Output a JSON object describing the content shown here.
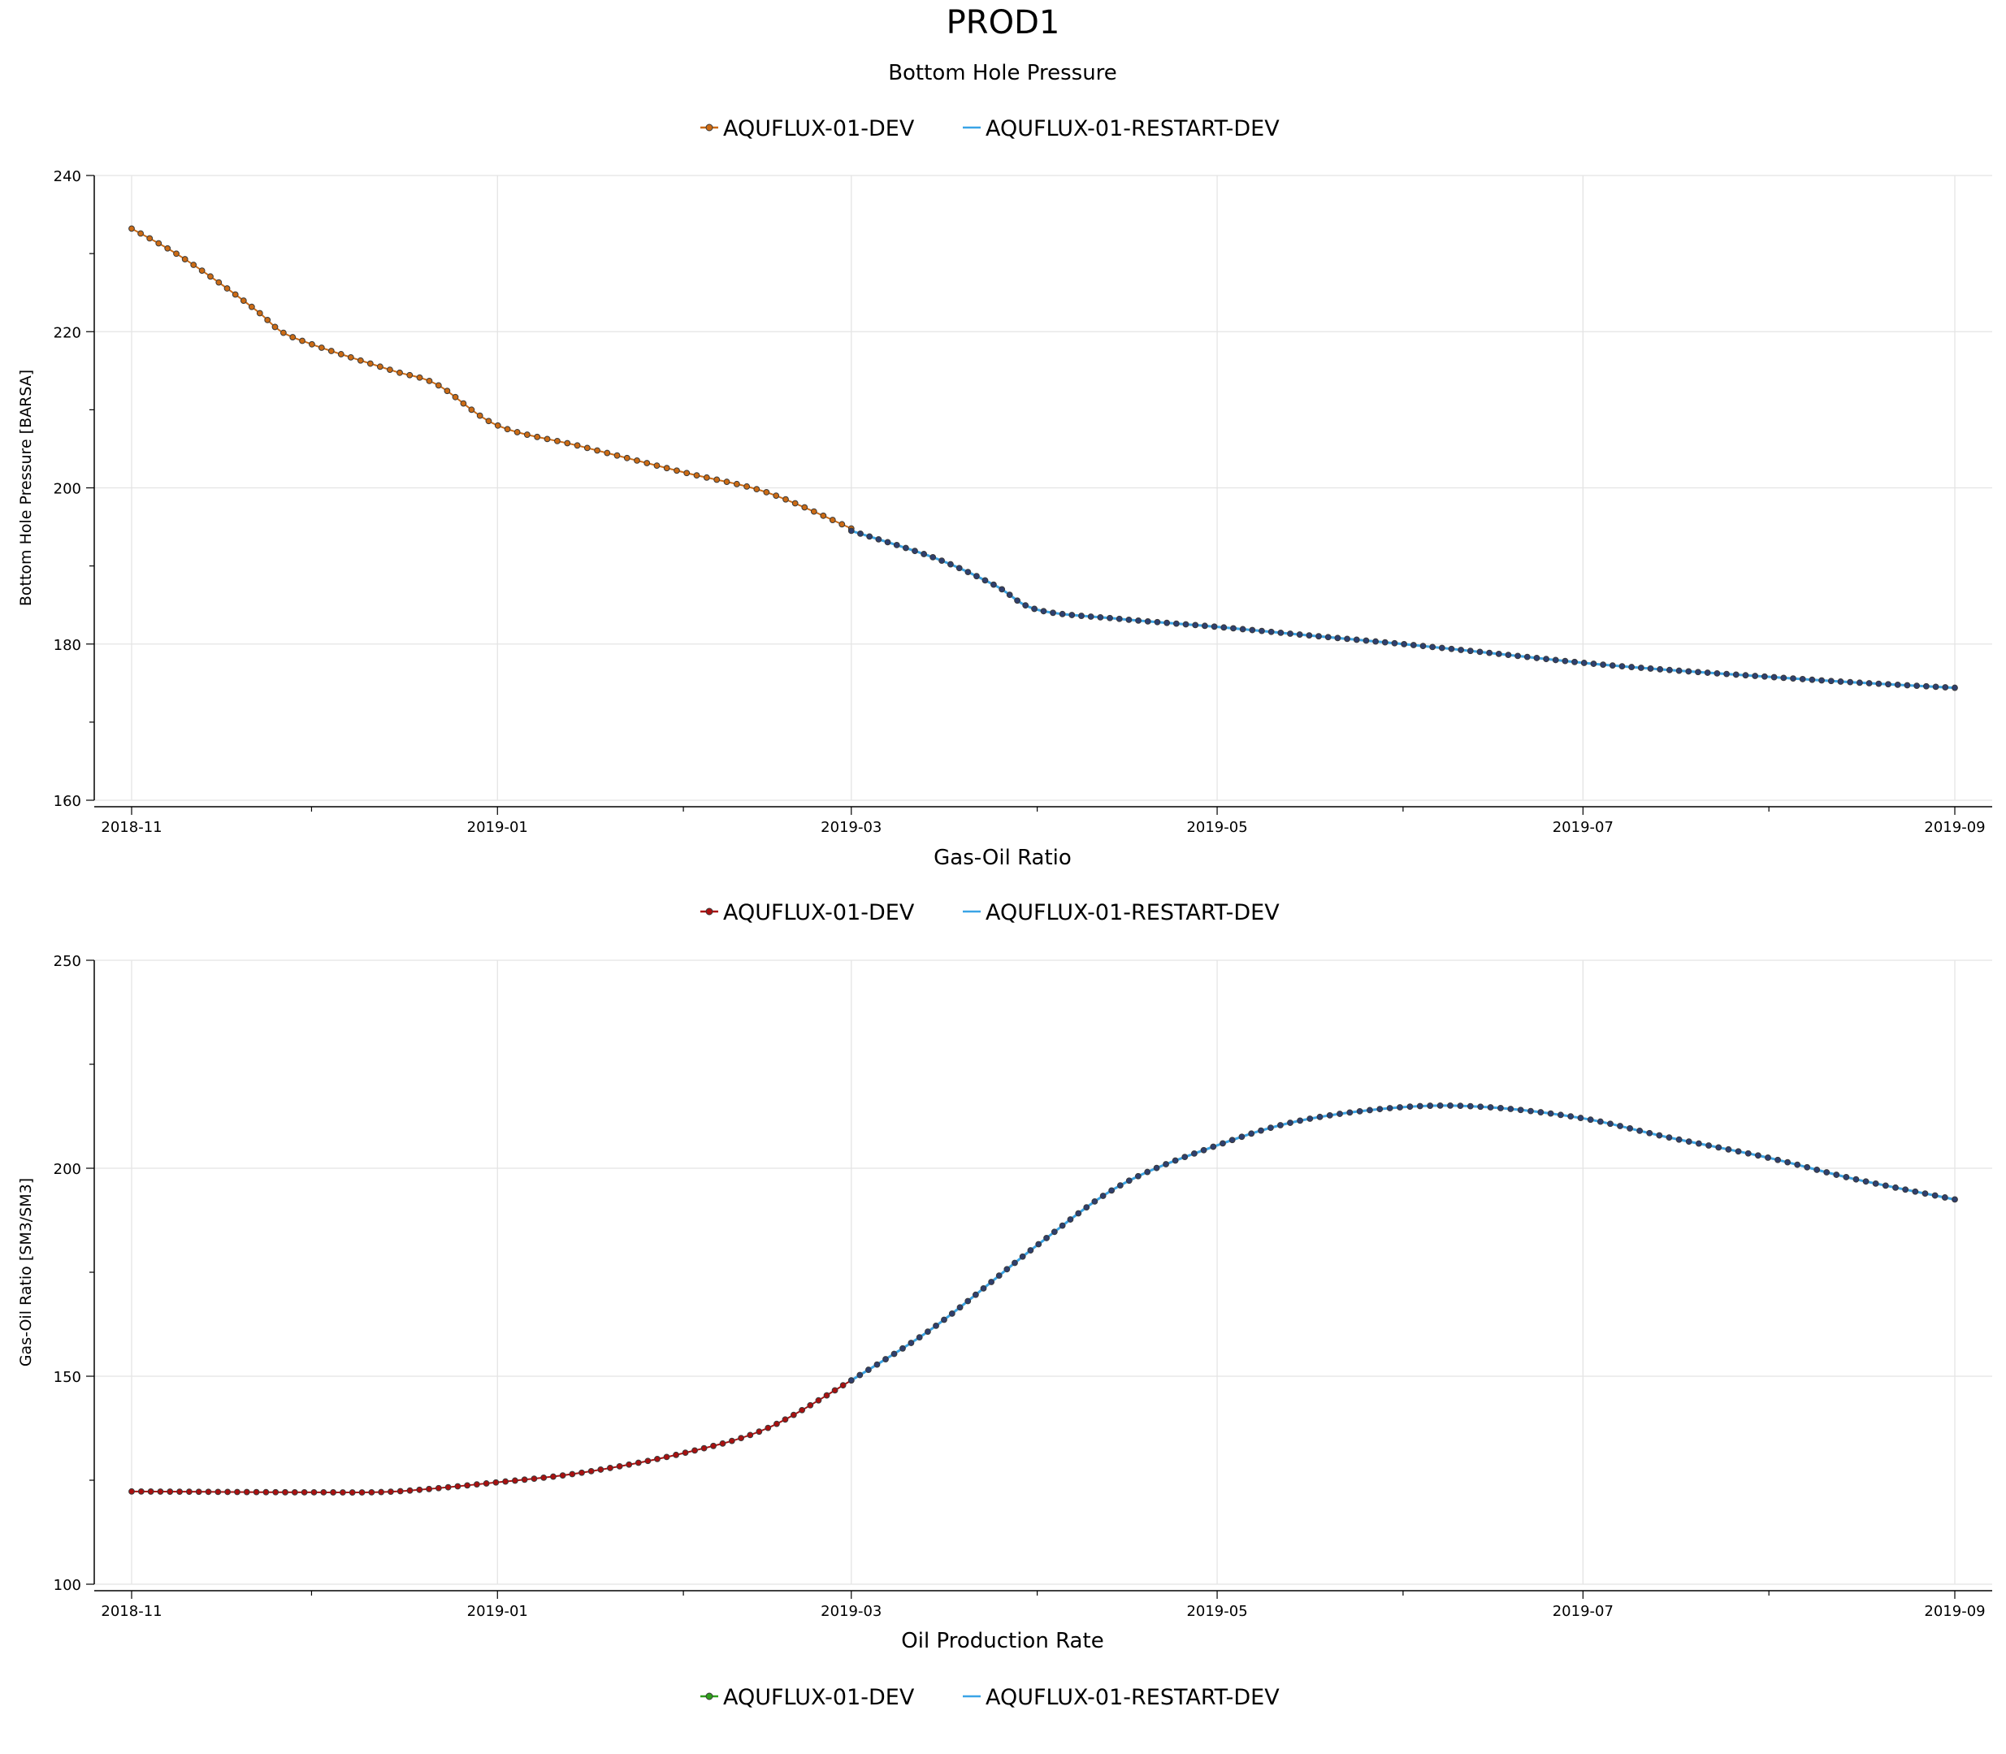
{
  "page": {
    "title": "PROD1"
  },
  "legend_labels": [
    "AQUFLUX-01-DEV",
    "AQUFLUX-01-RESTART-DEV"
  ],
  "colors": {
    "dev_bhp": "#cc6b14",
    "dev_gor": "#aa1010",
    "dev_opr": "#2e9e1c",
    "restart": "#3aa4e6",
    "marker_outline": "#3a3a3a",
    "grid": "#e4e4e4",
    "axis": "#000000"
  },
  "chart_data": [
    {
      "type": "line",
      "title": "Bottom Hole Pressure",
      "xlabel": "",
      "ylabel": "Bottom Hole Pressure [BARSA]",
      "x_ticks": [
        "2018-11",
        "2019-01",
        "2019-03",
        "2019-05",
        "2019-07",
        "2019-09"
      ],
      "y_ticks": [
        160,
        180,
        200,
        220,
        240
      ],
      "ylim": [
        160,
        240
      ],
      "grid": true,
      "legend_position": "top-center",
      "series": [
        {
          "name": "AQUFLUX-01-DEV",
          "color": "#cc6b14",
          "marker": "circle",
          "points": [
            [
              "2018-11-01",
              233.2
            ],
            [
              "2018-11-08",
              230.2
            ],
            [
              "2018-11-15",
              226.6
            ],
            [
              "2018-11-22",
              222.6
            ],
            [
              "2018-11-26",
              220.0
            ],
            [
              "2018-12-01",
              218.4
            ],
            [
              "2018-12-08",
              216.6
            ],
            [
              "2018-12-15",
              214.9
            ],
            [
              "2018-12-22",
              213.2
            ],
            [
              "2019-01-01",
              208.0
            ],
            [
              "2019-01-15",
              205.3
            ],
            [
              "2019-02-01",
              202.0
            ],
            [
              "2019-02-15",
              199.4
            ],
            [
              "2019-03-01",
              194.8
            ]
          ]
        },
        {
          "name": "AQUFLUX-01-RESTART-DEV",
          "color": "#3aa4e6",
          "marker": "circle",
          "points": [
            [
              "2019-03-01",
              194.5
            ],
            [
              "2019-03-15",
              191.0
            ],
            [
              "2019-03-25",
              187.5
            ],
            [
              "2019-04-01",
              184.4
            ],
            [
              "2019-04-15",
              183.2
            ],
            [
              "2019-05-01",
              182.2
            ],
            [
              "2019-05-15",
              181.2
            ],
            [
              "2019-06-01",
              180.0
            ],
            [
              "2019-06-15",
              178.9
            ],
            [
              "2019-07-01",
              177.6
            ],
            [
              "2019-07-15",
              176.7
            ],
            [
              "2019-08-01",
              175.8
            ],
            [
              "2019-08-15",
              175.1
            ],
            [
              "2019-09-01",
              174.4
            ]
          ]
        }
      ]
    },
    {
      "type": "line",
      "title": "Gas-Oil Ratio",
      "xlabel": "",
      "ylabel": "Gas-Oil Ratio [SM3/SM3]",
      "x_ticks": [
        "2018-11",
        "2019-01",
        "2019-03",
        "2019-05",
        "2019-07",
        "2019-09"
      ],
      "y_ticks": [
        100,
        150,
        200,
        250
      ],
      "ylim": [
        100,
        250
      ],
      "grid": true,
      "legend_position": "top-center",
      "series": [
        {
          "name": "AQUFLUX-01-DEV",
          "color": "#aa1010",
          "marker": "circle",
          "points": [
            [
              "2018-11-01",
              122.3
            ],
            [
              "2018-11-15",
              122.2
            ],
            [
              "2018-12-01",
              122.1
            ],
            [
              "2018-12-15",
              122.3
            ],
            [
              "2019-01-01",
              124.5
            ],
            [
              "2019-01-15",
              126.8
            ],
            [
              "2019-02-01",
              131.5
            ],
            [
              "2019-02-15",
              137.5
            ],
            [
              "2019-03-01",
              149.0
            ]
          ]
        },
        {
          "name": "AQUFLUX-01-RESTART-DEV",
          "color": "#3aa4e6",
          "marker": "circle",
          "points": [
            [
              "2019-03-01",
              149.0
            ],
            [
              "2019-03-15",
              162.0
            ],
            [
              "2019-04-01",
              181.5
            ],
            [
              "2019-04-15",
              196.0
            ],
            [
              "2019-05-01",
              205.5
            ],
            [
              "2019-05-15",
              211.5
            ],
            [
              "2019-06-01",
              214.7
            ],
            [
              "2019-06-15",
              214.7
            ],
            [
              "2019-07-01",
              212.0
            ],
            [
              "2019-07-15",
              207.5
            ],
            [
              "2019-08-01",
              202.5
            ],
            [
              "2019-08-15",
              197.5
            ],
            [
              "2019-09-01",
              192.5
            ]
          ]
        }
      ]
    },
    {
      "type": "line",
      "title": "Oil Production Rate",
      "legend_position": "top-center",
      "series": [
        {
          "name": "AQUFLUX-01-DEV",
          "color": "#2e9e1c",
          "marker": "circle",
          "points": []
        },
        {
          "name": "AQUFLUX-01-RESTART-DEV",
          "color": "#3aa4e6",
          "marker": "circle",
          "points": []
        }
      ]
    }
  ]
}
